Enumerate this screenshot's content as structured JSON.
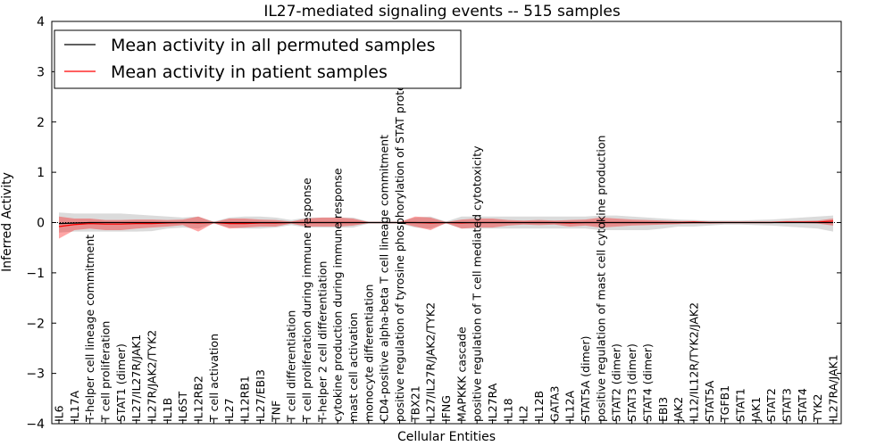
{
  "chart_data": {
    "type": "line",
    "title": "IL27-mediated signaling events -- 515 samples",
    "xlabel": "Cellular Entities",
    "ylabel": "Inferred Activity",
    "ylim": [
      -4,
      4
    ],
    "yticks": [
      4,
      3,
      2,
      1,
      0,
      -1,
      -2,
      -3,
      -4
    ],
    "ytick_labels": [
      "4",
      "3",
      "2",
      "1",
      "0",
      "−1",
      "−2",
      "−3",
      "−4"
    ],
    "legend": {
      "placement": "top-left",
      "entries": [
        {
          "label": "Mean activity in all permuted samples",
          "color": "#000000"
        },
        {
          "label": "Mean activity in patient samples",
          "color": "#ff0000"
        }
      ]
    },
    "categories": [
      "IL6",
      "IL17A",
      "T-helper cell lineage commitment",
      "T cell proliferation",
      "STAT1 (dimer)",
      "IL27/IL27R/JAK1",
      "IL27R/JAK2/TYK2",
      "IL1B",
      "IL6ST",
      "IL12RB2",
      "T cell activation",
      "IL27",
      "IL12RB1",
      "IL27/EBI3",
      "TNF",
      "T cell differentiation",
      "T cell proliferation during immune response",
      "T-helper 2 cell differentiation",
      "cytokine production during immune response",
      "mast cell activation",
      "monocyte differentiation",
      "CD4-positive alpha-beta T cell lineage commitment",
      "positive regulation of tyrosine phosphorylation of STAT protein",
      "TBX21",
      "IL27/IL27R/JAK2/TYK2",
      "IFNG",
      "MAPKKK cascade",
      "positive regulation of T cell mediated cytotoxicity",
      "IL27RA",
      "IL18",
      "IL2",
      "IL12B",
      "GATA3",
      "IL12A",
      "STAT5A (dimer)",
      "positive regulation of mast cell cytokine production",
      "STAT2 (dimer)",
      "STAT3 (dimer)",
      "STAT4 (dimer)",
      "EBI3",
      "JAK2",
      "IL12/IL12R/TYK2/JAK2",
      "STAT5A",
      "TGFB1",
      "STAT1",
      "JAK1",
      "STAT2",
      "STAT3",
      "STAT4",
      "TYK2",
      "IL27RA/JAK1"
    ],
    "series": [
      {
        "name": "Mean activity in all permuted samples",
        "color": "#000000",
        "values": [
          -0.02,
          -0.01,
          0.0,
          0.0,
          0.0,
          0.0,
          0.0,
          0.0,
          0.0,
          0.0,
          0.0,
          0.0,
          0.0,
          0.0,
          0.0,
          0.0,
          0.0,
          0.0,
          0.0,
          0.0,
          0.0,
          0.0,
          0.0,
          0.0,
          0.0,
          0.0,
          0.0,
          0.0,
          0.0,
          0.0,
          0.0,
          0.0,
          0.0,
          0.0,
          0.0,
          0.0,
          0.0,
          0.0,
          0.0,
          0.0,
          0.0,
          0.0,
          0.0,
          0.0,
          0.0,
          0.0,
          0.0,
          0.0,
          0.0,
          0.0,
          0.0
        ],
        "band_low": [
          -0.2,
          -0.18,
          -0.18,
          -0.18,
          -0.18,
          -0.18,
          -0.17,
          -0.12,
          -0.1,
          -0.12,
          -0.02,
          -0.1,
          -0.12,
          -0.12,
          -0.1,
          -0.05,
          -0.1,
          -0.1,
          -0.1,
          -0.1,
          -0.02,
          -0.02,
          -0.02,
          -0.1,
          -0.12,
          -0.02,
          -0.12,
          -0.12,
          -0.12,
          -0.12,
          -0.12,
          -0.12,
          -0.12,
          -0.12,
          -0.12,
          -0.15,
          -0.15,
          -0.15,
          -0.15,
          -0.12,
          -0.08,
          -0.08,
          -0.06,
          -0.04,
          -0.04,
          -0.05,
          -0.06,
          -0.08,
          -0.1,
          -0.12,
          -0.18
        ],
        "band_high": [
          0.2,
          0.18,
          0.18,
          0.18,
          0.18,
          0.16,
          0.14,
          0.12,
          0.1,
          0.12,
          0.02,
          0.1,
          0.12,
          0.12,
          0.1,
          0.05,
          0.1,
          0.1,
          0.1,
          0.1,
          0.02,
          0.02,
          0.02,
          0.1,
          0.12,
          0.02,
          0.12,
          0.12,
          0.12,
          0.12,
          0.12,
          0.12,
          0.12,
          0.12,
          0.12,
          0.14,
          0.14,
          0.12,
          0.1,
          0.08,
          0.06,
          0.05,
          0.04,
          0.04,
          0.04,
          0.05,
          0.06,
          0.08,
          0.1,
          0.12,
          0.14
        ]
      },
      {
        "name": "Mean activity in patient samples",
        "color": "#ff0000",
        "values": [
          -0.08,
          -0.04,
          -0.02,
          -0.03,
          -0.03,
          -0.02,
          -0.02,
          -0.01,
          0.0,
          -0.01,
          0.0,
          -0.02,
          -0.02,
          -0.01,
          -0.01,
          0.0,
          0.0,
          0.0,
          0.0,
          0.0,
          0.0,
          0.0,
          0.0,
          0.0,
          -0.01,
          0.0,
          -0.01,
          0.0,
          0.0,
          0.0,
          0.0,
          0.0,
          0.0,
          -0.01,
          0.0,
          0.0,
          0.0,
          0.0,
          0.0,
          0.0,
          0.0,
          0.01,
          0.0,
          0.0,
          0.0,
          0.0,
          0.0,
          0.01,
          0.01,
          0.01,
          0.03
        ],
        "band_low": [
          -0.32,
          -0.15,
          -0.12,
          -0.15,
          -0.15,
          -0.12,
          -0.1,
          -0.08,
          -0.05,
          -0.18,
          -0.01,
          -0.12,
          -0.1,
          -0.08,
          -0.08,
          -0.02,
          -0.08,
          -0.08,
          -0.08,
          -0.06,
          -0.01,
          -0.01,
          -0.01,
          -0.08,
          -0.15,
          -0.01,
          -0.12,
          -0.1,
          -0.1,
          -0.06,
          -0.04,
          -0.05,
          -0.04,
          -0.08,
          -0.06,
          -0.1,
          -0.08,
          -0.06,
          -0.05,
          -0.04,
          -0.03,
          -0.02,
          -0.02,
          -0.01,
          -0.01,
          -0.01,
          -0.01,
          -0.01,
          -0.01,
          -0.02,
          -0.06
        ],
        "band_high": [
          0.12,
          0.08,
          0.08,
          0.05,
          0.05,
          0.06,
          0.06,
          0.05,
          0.06,
          0.12,
          0.01,
          0.08,
          0.08,
          0.06,
          0.05,
          0.02,
          0.08,
          0.1,
          0.1,
          0.08,
          0.01,
          0.01,
          0.01,
          0.12,
          0.1,
          0.01,
          0.06,
          0.08,
          0.08,
          0.05,
          0.04,
          0.05,
          0.04,
          0.05,
          0.06,
          0.1,
          0.08,
          0.06,
          0.05,
          0.04,
          0.03,
          0.03,
          0.02,
          0.02,
          0.02,
          0.02,
          0.02,
          0.03,
          0.03,
          0.04,
          0.08
        ]
      }
    ],
    "zero_reference_line": true,
    "grid": false
  }
}
